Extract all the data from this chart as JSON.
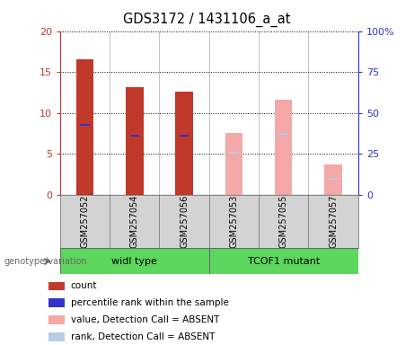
{
  "title": "GDS3172 / 1431106_a_at",
  "samples": [
    "GSM257052",
    "GSM257054",
    "GSM257056",
    "GSM257053",
    "GSM257055",
    "GSM257057"
  ],
  "groups": [
    "widl type",
    "TCOF1 mutant"
  ],
  "count_values": [
    16.6,
    13.2,
    12.6,
    null,
    null,
    null
  ],
  "percentile_values": [
    8.5,
    7.2,
    7.2,
    null,
    null,
    null
  ],
  "absent_value_values": [
    null,
    null,
    null,
    7.6,
    11.6,
    3.7
  ],
  "absent_rank_values": [
    null,
    null,
    null,
    5.1,
    7.5,
    2.0
  ],
  "ylim_left": [
    0,
    20
  ],
  "ylim_right": [
    0,
    100
  ],
  "yticks_left": [
    0,
    5,
    10,
    15,
    20
  ],
  "ytick_labels_left": [
    "0",
    "5",
    "10",
    "15",
    "20"
  ],
  "yticks_right": [
    0,
    25,
    50,
    75,
    100
  ],
  "ytick_labels_right": [
    "0",
    "25",
    "50",
    "75",
    "100%"
  ],
  "color_count": "#c0392b",
  "color_percentile": "#3333cc",
  "color_absent_value": "#f4a9a8",
  "color_absent_rank": "#b8cce4",
  "bar_width": 0.35,
  "group_color": "#5cd65c",
  "legend_items": [
    {
      "label": "count",
      "color": "#c0392b"
    },
    {
      "label": "percentile rank within the sample",
      "color": "#3333cc"
    },
    {
      "label": "value, Detection Call = ABSENT",
      "color": "#f4a9a8"
    },
    {
      "label": "rank, Detection Call = ABSENT",
      "color": "#b8cce4"
    }
  ]
}
